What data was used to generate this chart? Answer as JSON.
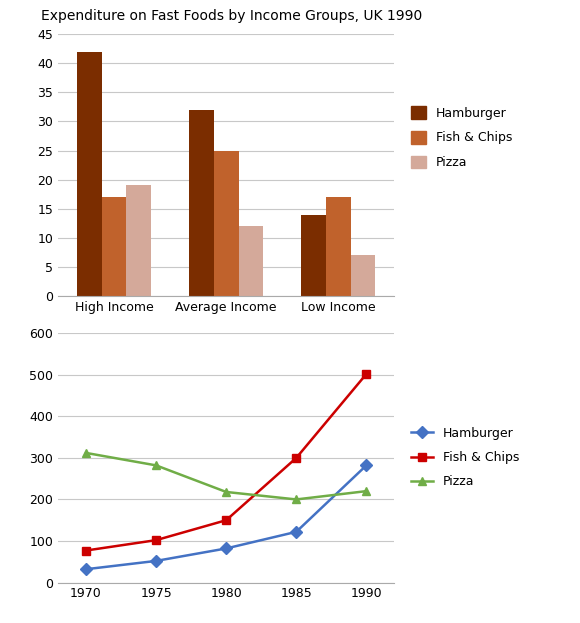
{
  "title_bar": "Expenditure on Fast Foods by Income Groups, UK 1990",
  "bar_categories": [
    "High Income",
    "Average Income",
    "Low Income"
  ],
  "bar_data": {
    "Hamburger": [
      42,
      32,
      14
    ],
    "Fish & Chips": [
      17,
      25,
      17
    ],
    "Pizza": [
      19,
      12,
      7
    ]
  },
  "bar_colors": {
    "Hamburger": "#7B2D00",
    "Fish & Chips": "#C0622C",
    "Pizza": "#D4A99A"
  },
  "bar_ylim": [
    0,
    45
  ],
  "bar_yticks": [
    0,
    5,
    10,
    15,
    20,
    25,
    30,
    35,
    40,
    45
  ],
  "line_years": [
    1970,
    1975,
    1980,
    1985,
    1990
  ],
  "line_data": {
    "Hamburger": [
      32,
      52,
      82,
      122,
      282
    ],
    "Fish & Chips": [
      77,
      102,
      150,
      300,
      502
    ],
    "Pizza": [
      312,
      282,
      218,
      200,
      220
    ]
  },
  "line_colors": {
    "Hamburger": "#4472C4",
    "Fish & Chips": "#CC0000",
    "Pizza": "#70AD47"
  },
  "line_ylim": [
    0,
    600
  ],
  "line_yticks": [
    0,
    100,
    200,
    300,
    400,
    500,
    600
  ],
  "line_xticks": [
    1970,
    1975,
    1980,
    1985,
    1990
  ],
  "legend_labels": [
    "Hamburger",
    "Fish & Chips",
    "Pizza"
  ],
  "bg_color": "#FFFFFF",
  "grid_color": "#C8C8C8"
}
